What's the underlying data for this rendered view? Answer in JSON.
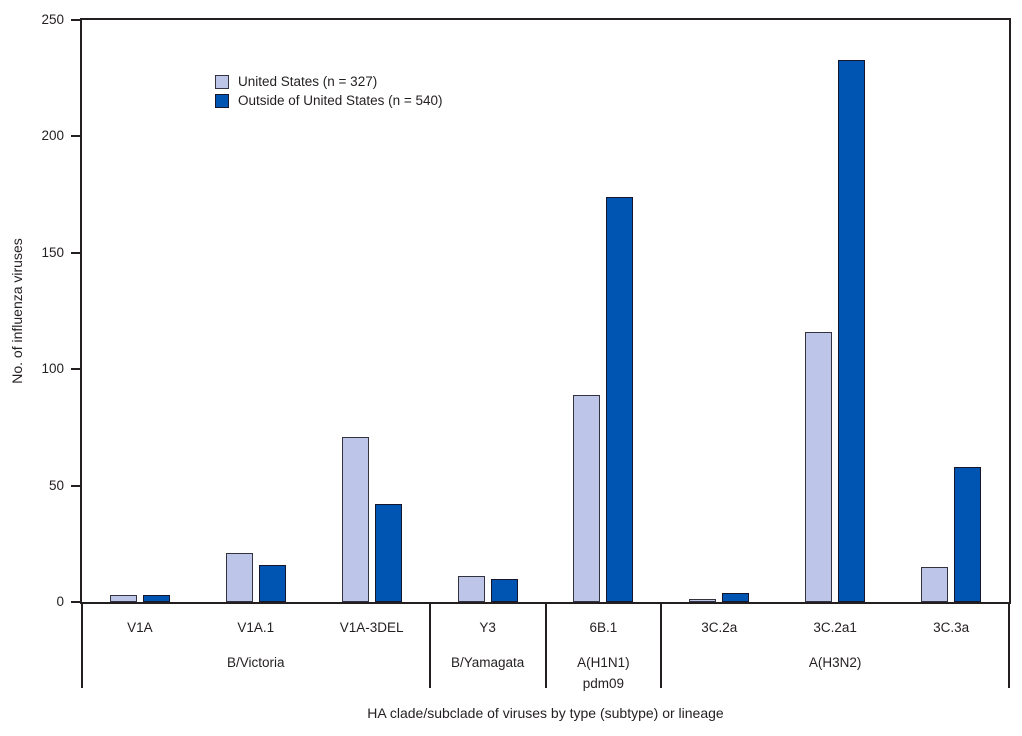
{
  "chart_data": {
    "type": "bar",
    "ylabel": "No. of influenza viruses",
    "xlabel": "HA clade/subclade of viruses by type (subtype) or lineage",
    "ylim": [
      0,
      250
    ],
    "yticks": [
      0,
      50,
      100,
      150,
      200,
      250
    ],
    "grid": false,
    "legend_position": "top-left-inside",
    "categories": [
      "V1A",
      "V1A.1",
      "V1A-3DEL",
      "Y3",
      "6B.1",
      "3C.2a",
      "3C.2a1",
      "3C.3a"
    ],
    "groups": [
      {
        "label": "B/Victoria",
        "span": 3
      },
      {
        "label": "B/Yamagata",
        "span": 1
      },
      {
        "label": "A(H1N1)\npdm09",
        "span": 1
      },
      {
        "label": "A(H3N2)",
        "span": 3
      }
    ],
    "series": [
      {
        "name": "United States (n = 327)",
        "color": "#bdc6e8",
        "border_color": "#33333f",
        "values": [
          3,
          21,
          71,
          11,
          89,
          1,
          116,
          15
        ]
      },
      {
        "name": "Outside of United States (n = 540)",
        "color": "#0055b2",
        "border_color": "#16162c",
        "values": [
          3,
          16,
          42,
          10,
          174,
          4,
          233,
          58
        ]
      }
    ]
  },
  "colors": {
    "axis": "#231f20",
    "text": "#231f20",
    "background": "#ffffff"
  }
}
